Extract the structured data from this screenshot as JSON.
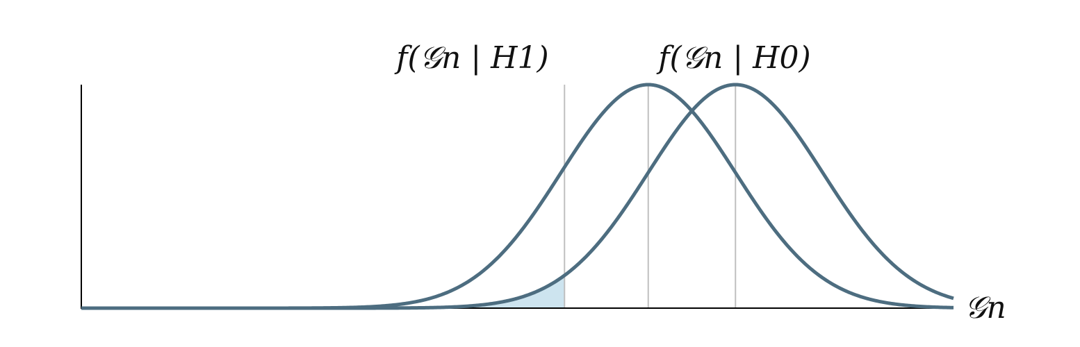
{
  "chart_data": {
    "type": "line",
    "title": "",
    "xlabel": "𝒢n",
    "ylabel": "",
    "xlim": [
      -7,
      3
    ],
    "ylim": [
      0,
      1
    ],
    "grid": false,
    "legend": "none",
    "series": [
      {
        "name": "f(𝒢n | H1)",
        "distribution": "normal",
        "mean": -0.5,
        "sd": 1,
        "peak": 1
      },
      {
        "name": "f(𝒢n | H0)",
        "distribution": "normal",
        "mean": 0.5,
        "sd": 1,
        "peak": 1
      }
    ],
    "reference_lines_x": [
      -1.46,
      -0.5,
      0.5
    ],
    "shaded_region": {
      "under_series": "f(𝒢n | H0)",
      "from": -7,
      "to": -1.46
    },
    "colors": {
      "curve": "#4d6d80",
      "reference_line": "#bfbfbf",
      "shade": "#cde4ef",
      "axis": "#000000"
    }
  }
}
